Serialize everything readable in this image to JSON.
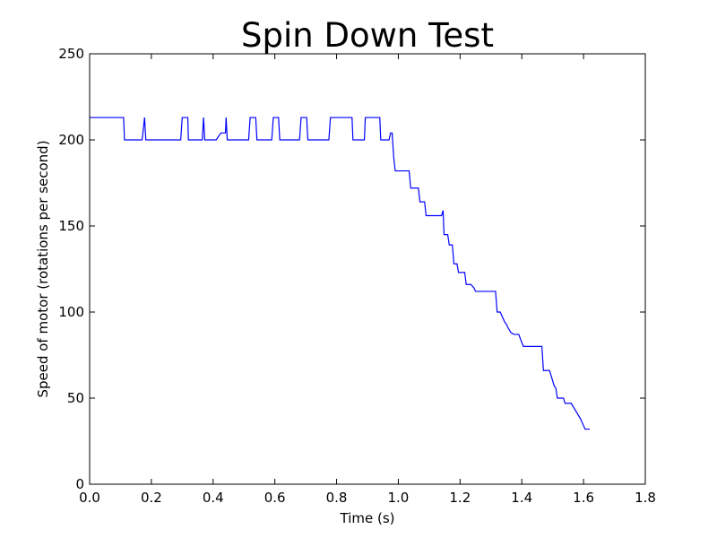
{
  "chart_data": {
    "type": "line",
    "title": "Spin Down Test",
    "xlabel": "Time (s)",
    "ylabel": "Speed of motor (rotations per second)",
    "xlim": [
      0.0,
      1.8
    ],
    "ylim": [
      0,
      250
    ],
    "x_ticks": [
      "0.0",
      "0.2",
      "0.4",
      "0.6",
      "0.8",
      "1.0",
      "1.2",
      "1.4",
      "1.6",
      "1.8"
    ],
    "y_ticks": [
      "0",
      "50",
      "100",
      "150",
      "200",
      "250"
    ],
    "grid": false,
    "legend": "none",
    "series": [
      {
        "color": "#0000ff",
        "x": [
          0.0,
          0.11,
          0.113,
          0.17,
          0.178,
          0.182,
          0.295,
          0.3,
          0.318,
          0.32,
          0.365,
          0.369,
          0.373,
          0.41,
          0.425,
          0.44,
          0.442,
          0.446,
          0.515,
          0.52,
          0.538,
          0.542,
          0.59,
          0.595,
          0.612,
          0.616,
          0.68,
          0.685,
          0.703,
          0.707,
          0.775,
          0.78,
          0.85,
          0.853,
          0.89,
          0.893,
          0.94,
          0.943,
          0.97,
          0.975,
          0.98,
          0.985,
          0.99,
          1.0,
          1.035,
          1.04,
          1.065,
          1.07,
          1.085,
          1.09,
          1.14,
          1.145,
          1.148,
          1.16,
          1.165,
          1.175,
          1.18,
          1.19,
          1.195,
          1.215,
          1.22,
          1.235,
          1.245,
          1.25,
          1.26,
          1.275,
          1.28,
          1.315,
          1.32,
          1.33,
          1.345,
          1.35,
          1.355,
          1.365,
          1.375,
          1.39,
          1.405,
          1.465,
          1.47,
          1.49,
          1.505,
          1.51,
          1.515,
          1.535,
          1.54,
          1.56,
          1.59,
          1.605,
          1.62
        ],
        "y": [
          213,
          213,
          200,
          200,
          213,
          200,
          200,
          213,
          213,
          200,
          200,
          213,
          200,
          200,
          204,
          204,
          213,
          200,
          200,
          213,
          213,
          200,
          200,
          213,
          213,
          200,
          200,
          213,
          213,
          200,
          200,
          213,
          213,
          200,
          200,
          213,
          213,
          200,
          200,
          204,
          204,
          190,
          182,
          182,
          182,
          172,
          172,
          164,
          164,
          156,
          156,
          159,
          145,
          145,
          139,
          139,
          128,
          128,
          123,
          123,
          116,
          116,
          114,
          112,
          112,
          112,
          112,
          112,
          100,
          100,
          94,
          93,
          91,
          88,
          87,
          87,
          80,
          80,
          66,
          66,
          57,
          56,
          50,
          50,
          47,
          47,
          38,
          32,
          32
        ]
      }
    ]
  }
}
